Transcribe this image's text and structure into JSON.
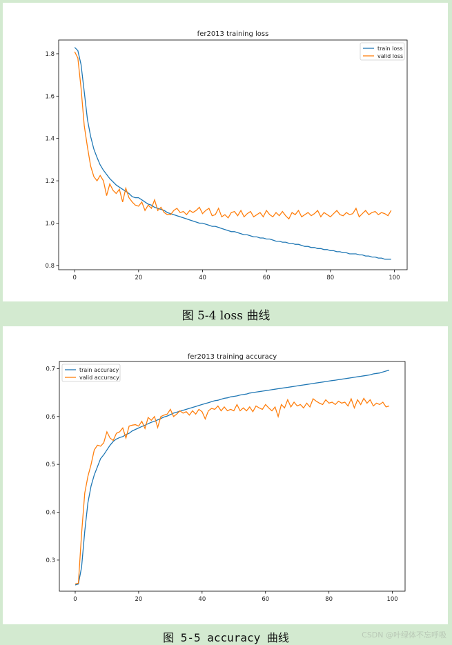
{
  "captions": {
    "loss": "图 5-4 loss 曲线",
    "accuracy": "图 5-5 accuracy 曲线"
  },
  "watermark": "CSDN @叶绿体不忘呼吸",
  "colors": {
    "train": "#1f77b4",
    "valid": "#ff7f0e"
  },
  "chart_data": [
    {
      "type": "line",
      "title": "fer2013 training loss",
      "xlabel": "",
      "ylabel": "",
      "xlim": [
        -5,
        104
      ],
      "ylim": [
        0.78,
        1.865
      ],
      "xticks": [
        0,
        20,
        40,
        60,
        80,
        100
      ],
      "yticks": [
        0.8,
        1.0,
        1.2,
        1.4,
        1.6,
        1.8
      ],
      "tick_decimals": 1,
      "legend": "top-right",
      "grid": false,
      "series": [
        {
          "name": "train loss",
          "values": [
            1.83,
            1.815,
            1.75,
            1.62,
            1.49,
            1.41,
            1.35,
            1.31,
            1.275,
            1.25,
            1.23,
            1.21,
            1.195,
            1.18,
            1.17,
            1.16,
            1.15,
            1.14,
            1.125,
            1.12,
            1.12,
            1.11,
            1.1,
            1.09,
            1.085,
            1.075,
            1.07,
            1.065,
            1.06,
            1.05,
            1.045,
            1.04,
            1.035,
            1.03,
            1.025,
            1.02,
            1.015,
            1.01,
            1.005,
            1.0,
            1.0,
            0.995,
            0.99,
            0.985,
            0.985,
            0.98,
            0.975,
            0.97,
            0.965,
            0.96,
            0.96,
            0.955,
            0.95,
            0.945,
            0.945,
            0.94,
            0.935,
            0.935,
            0.93,
            0.93,
            0.925,
            0.925,
            0.92,
            0.915,
            0.915,
            0.91,
            0.91,
            0.905,
            0.905,
            0.9,
            0.9,
            0.895,
            0.89,
            0.89,
            0.885,
            0.885,
            0.88,
            0.88,
            0.875,
            0.875,
            0.87,
            0.87,
            0.865,
            0.865,
            0.86,
            0.86,
            0.855,
            0.855,
            0.855,
            0.85,
            0.85,
            0.845,
            0.845,
            0.84,
            0.84,
            0.835,
            0.835,
            0.83,
            0.83,
            0.83
          ]
        },
        {
          "name": "valid loss",
          "values": [
            1.81,
            1.78,
            1.64,
            1.46,
            1.36,
            1.27,
            1.22,
            1.2,
            1.225,
            1.2,
            1.13,
            1.185,
            1.155,
            1.14,
            1.16,
            1.1,
            1.165,
            1.12,
            1.1,
            1.085,
            1.08,
            1.1,
            1.06,
            1.085,
            1.07,
            1.11,
            1.06,
            1.075,
            1.05,
            1.04,
            1.04,
            1.06,
            1.07,
            1.05,
            1.055,
            1.04,
            1.06,
            1.05,
            1.06,
            1.075,
            1.045,
            1.06,
            1.07,
            1.035,
            1.04,
            1.07,
            1.03,
            1.04,
            1.025,
            1.05,
            1.055,
            1.035,
            1.06,
            1.03,
            1.045,
            1.055,
            1.03,
            1.04,
            1.05,
            1.03,
            1.06,
            1.04,
            1.03,
            1.05,
            1.035,
            1.055,
            1.035,
            1.02,
            1.05,
            1.04,
            1.06,
            1.03,
            1.04,
            1.05,
            1.035,
            1.045,
            1.06,
            1.03,
            1.05,
            1.04,
            1.03,
            1.045,
            1.06,
            1.04,
            1.035,
            1.05,
            1.04,
            1.045,
            1.07,
            1.03,
            1.045,
            1.06,
            1.04,
            1.05,
            1.055,
            1.04,
            1.05,
            1.045,
            1.035,
            1.06
          ]
        }
      ]
    },
    {
      "type": "line",
      "title": "fer2013 training accuracy",
      "xlabel": "",
      "ylabel": "",
      "xlim": [
        -5,
        104
      ],
      "ylim": [
        0.235,
        0.715
      ],
      "xticks": [
        0,
        20,
        40,
        60,
        80,
        100
      ],
      "yticks": [
        0.3,
        0.4,
        0.5,
        0.6,
        0.7
      ],
      "tick_decimals": 1,
      "legend": "top-left",
      "grid": false,
      "series": [
        {
          "name": "train accuracy",
          "values": [
            0.248,
            0.25,
            0.285,
            0.36,
            0.42,
            0.455,
            0.478,
            0.495,
            0.512,
            0.52,
            0.53,
            0.54,
            0.548,
            0.553,
            0.556,
            0.558,
            0.562,
            0.565,
            0.57,
            0.573,
            0.576,
            0.579,
            0.582,
            0.585,
            0.588,
            0.59,
            0.593,
            0.596,
            0.599,
            0.601,
            0.604,
            0.607,
            0.609,
            0.611,
            0.613,
            0.615,
            0.617,
            0.619,
            0.621,
            0.623,
            0.625,
            0.627,
            0.629,
            0.631,
            0.633,
            0.634,
            0.636,
            0.638,
            0.639,
            0.641,
            0.642,
            0.643,
            0.645,
            0.646,
            0.647,
            0.649,
            0.65,
            0.651,
            0.652,
            0.653,
            0.654,
            0.655,
            0.656,
            0.657,
            0.658,
            0.659,
            0.66,
            0.661,
            0.662,
            0.663,
            0.664,
            0.665,
            0.666,
            0.667,
            0.668,
            0.669,
            0.67,
            0.671,
            0.672,
            0.673,
            0.674,
            0.675,
            0.676,
            0.677,
            0.678,
            0.679,
            0.68,
            0.681,
            0.682,
            0.683,
            0.684,
            0.685,
            0.686,
            0.687,
            0.689,
            0.69,
            0.691,
            0.693,
            0.695,
            0.697
          ]
        },
        {
          "name": "valid accuracy",
          "values": [
            0.25,
            0.252,
            0.355,
            0.44,
            0.475,
            0.5,
            0.53,
            0.54,
            0.538,
            0.545,
            0.568,
            0.555,
            0.55,
            0.565,
            0.568,
            0.576,
            0.555,
            0.58,
            0.582,
            0.583,
            0.58,
            0.59,
            0.575,
            0.598,
            0.592,
            0.6,
            0.577,
            0.6,
            0.603,
            0.605,
            0.615,
            0.6,
            0.605,
            0.612,
            0.607,
            0.61,
            0.603,
            0.612,
            0.605,
            0.615,
            0.61,
            0.595,
            0.612,
            0.617,
            0.615,
            0.622,
            0.612,
            0.62,
            0.612,
            0.615,
            0.612,
            0.625,
            0.612,
            0.618,
            0.612,
            0.62,
            0.61,
            0.622,
            0.618,
            0.615,
            0.625,
            0.618,
            0.612,
            0.62,
            0.6,
            0.625,
            0.618,
            0.635,
            0.62,
            0.63,
            0.622,
            0.625,
            0.618,
            0.628,
            0.62,
            0.637,
            0.632,
            0.628,
            0.625,
            0.635,
            0.628,
            0.63,
            0.625,
            0.632,
            0.628,
            0.63,
            0.622,
            0.637,
            0.618,
            0.635,
            0.625,
            0.638,
            0.628,
            0.635,
            0.622,
            0.628,
            0.625,
            0.63,
            0.62,
            0.622
          ]
        }
      ]
    }
  ]
}
